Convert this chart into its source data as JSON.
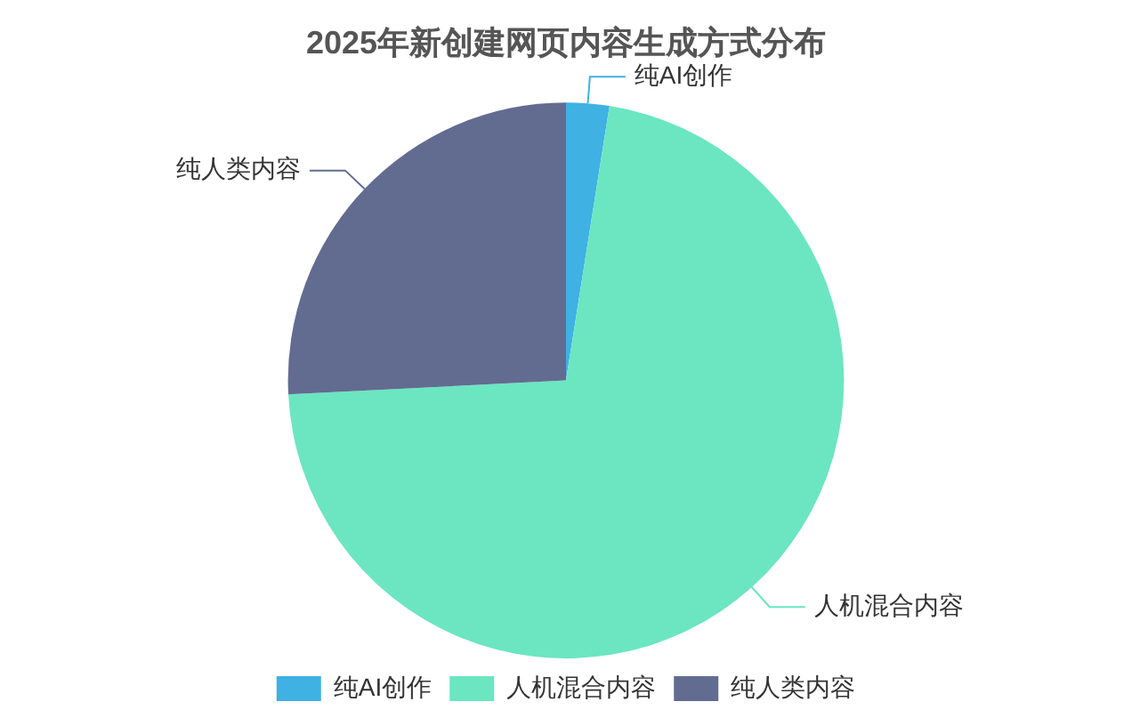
{
  "chart_data": {
    "type": "pie",
    "title": "2025年新创建网页内容生成方式分布",
    "categories": [
      "纯AI创作",
      "人机混合内容",
      "纯人类内容"
    ],
    "values": [
      2.5,
      71.7,
      25.8
    ],
    "colors": [
      "#3fb1e3",
      "#6be6c1",
      "#626c91"
    ],
    "legend": "bottom"
  }
}
